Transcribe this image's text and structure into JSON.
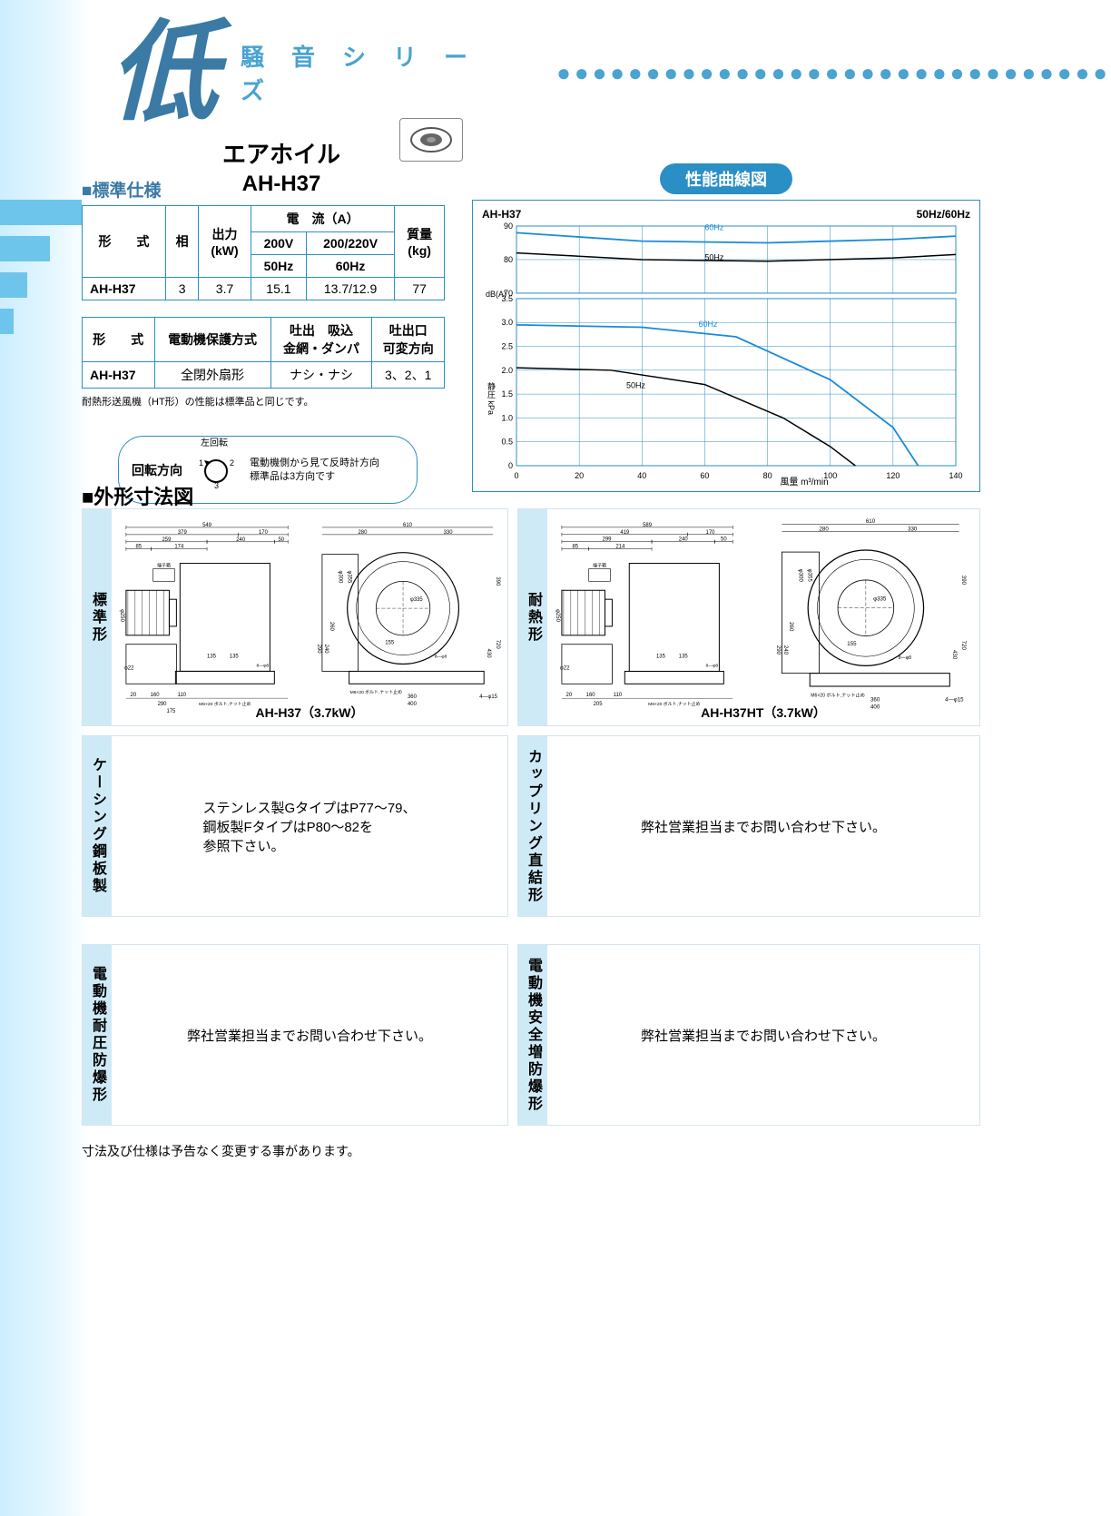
{
  "header": {
    "big_char": "低",
    "series": "騒音シリーズ",
    "dots": "●●●●●●●●●●●●●●●●●●●●●●●●●●●●●●●"
  },
  "product": {
    "name": "エアホイル",
    "model": "AH-H37"
  },
  "spec_label": "■標準仕様",
  "spec_table1": {
    "headers": {
      "model": "形　　式",
      "phase": "相",
      "output": "出力\n(kW)",
      "current": "電　流（A）",
      "v200": "200V",
      "v220": "200/220V",
      "hz50": "50Hz",
      "hz60": "60Hz",
      "weight": "質量\n(kg)"
    },
    "row": {
      "model": "AH-H37",
      "phase": "3",
      "output": "3.7",
      "a50": "15.1",
      "a60": "13.7/12.9",
      "weight": "77"
    }
  },
  "spec_table2": {
    "headers": {
      "model": "形　　式",
      "protect": "電動機保護方式",
      "damper": "吐出　吸込\n金網・ダンパ",
      "direction": "吐出口\n可変方向"
    },
    "row": {
      "model": "AH-H37",
      "protect": "全閉外扇形",
      "damper": "ナシ・ナシ",
      "direction": "3、2、1"
    }
  },
  "note1": "耐熱形送風機（HT形）の性能は標準品と同じです。",
  "rotation": {
    "label": "回転方向",
    "top": "左回転",
    "side_desc": "電動機側から見て反時計方向\n標準品は3方向です",
    "pos1": "1",
    "pos2": "2",
    "pos3": "3"
  },
  "curve": {
    "badge": "性能曲線図",
    "model": "AH-H37",
    "freq": "50Hz/60Hz",
    "ylabel_top": "dB(A)",
    "ylabel_mid": "静圧 kPa",
    "xlabel": "風量 m³/min",
    "y_top_ticks": [
      "70",
      "80",
      "90"
    ],
    "y_bot_ticks": [
      "0",
      "0.5",
      "1.0",
      "1.5",
      "2.0",
      "2.5",
      "3.0",
      "3.5"
    ],
    "x_ticks": [
      "0",
      "20",
      "40",
      "60",
      "80",
      "100",
      "120",
      "140"
    ],
    "lbl_50": "50Hz",
    "lbl_60": "60Hz",
    "colors": {
      "grid": "#2a8fc5",
      "line50": "#000000",
      "line60": "#1a8ad8"
    },
    "noise_60": [
      [
        0,
        88
      ],
      [
        40,
        85.5
      ],
      [
        80,
        85
      ],
      [
        120,
        86
      ],
      [
        140,
        87
      ]
    ],
    "noise_50": [
      [
        0,
        82
      ],
      [
        40,
        80
      ],
      [
        80,
        79.5
      ],
      [
        120,
        80.5
      ],
      [
        140,
        81.5
      ]
    ],
    "press_60": [
      [
        0,
        2.95
      ],
      [
        40,
        2.9
      ],
      [
        70,
        2.7
      ],
      [
        100,
        1.8
      ],
      [
        120,
        0.8
      ],
      [
        128,
        0
      ]
    ],
    "press_50": [
      [
        0,
        2.05
      ],
      [
        30,
        2.0
      ],
      [
        60,
        1.7
      ],
      [
        85,
        1.0
      ],
      [
        100,
        0.4
      ],
      [
        108,
        0
      ]
    ]
  },
  "dim_heading": "■外形寸法図",
  "panels": {
    "std": "標準形",
    "heat": "耐熱形",
    "casing": "ケーシング鋼板製",
    "coupling": "カップリング直結形",
    "motor_p": "電動機耐圧防爆形",
    "motor_s": "電動機安全増防爆形",
    "casing_text": "ステンレス製GタイプはP77～79、\n鋼板製FタイプはP80～82を\n参照下さい。",
    "contact_text": "弊社営業担当までお問い合わせ下さい。",
    "caption_std": "AH-H37（3.7kW）",
    "caption_ht": "AH-H37HT（3.7kW）"
  },
  "dims": {
    "w549": "549",
    "w379": "379",
    "w170": "170",
    "w259": "259",
    "w240": "240",
    "w50": "50",
    "w85": "85",
    "w174": "174",
    "w610": "610",
    "w280": "280",
    "w330": "330",
    "w589": "589",
    "w419": "419",
    "w299": "299",
    "w214": "214",
    "h250": "φ250",
    "h22": "φ22",
    "h300": "φ300",
    "h355": "φ355",
    "h335": "φ335",
    "h390": "390",
    "h260": "260",
    "h720": "720",
    "h430": "430",
    "h135": "135",
    "h290": "290",
    "h240v": "240",
    "h155": "155",
    "w20": "20",
    "w160": "160",
    "w110": "110",
    "w290f": "290",
    "w175": "175",
    "w205": "205",
    "w360": "360",
    "w400": "400",
    "d15": "4―φ15",
    "d8": "8―φ8",
    "bolt": "M6×20 ボルト,ナット止め",
    "tb": "端子箱"
  },
  "footnote": "寸法及び仕様は予告なく変更する事があります。"
}
